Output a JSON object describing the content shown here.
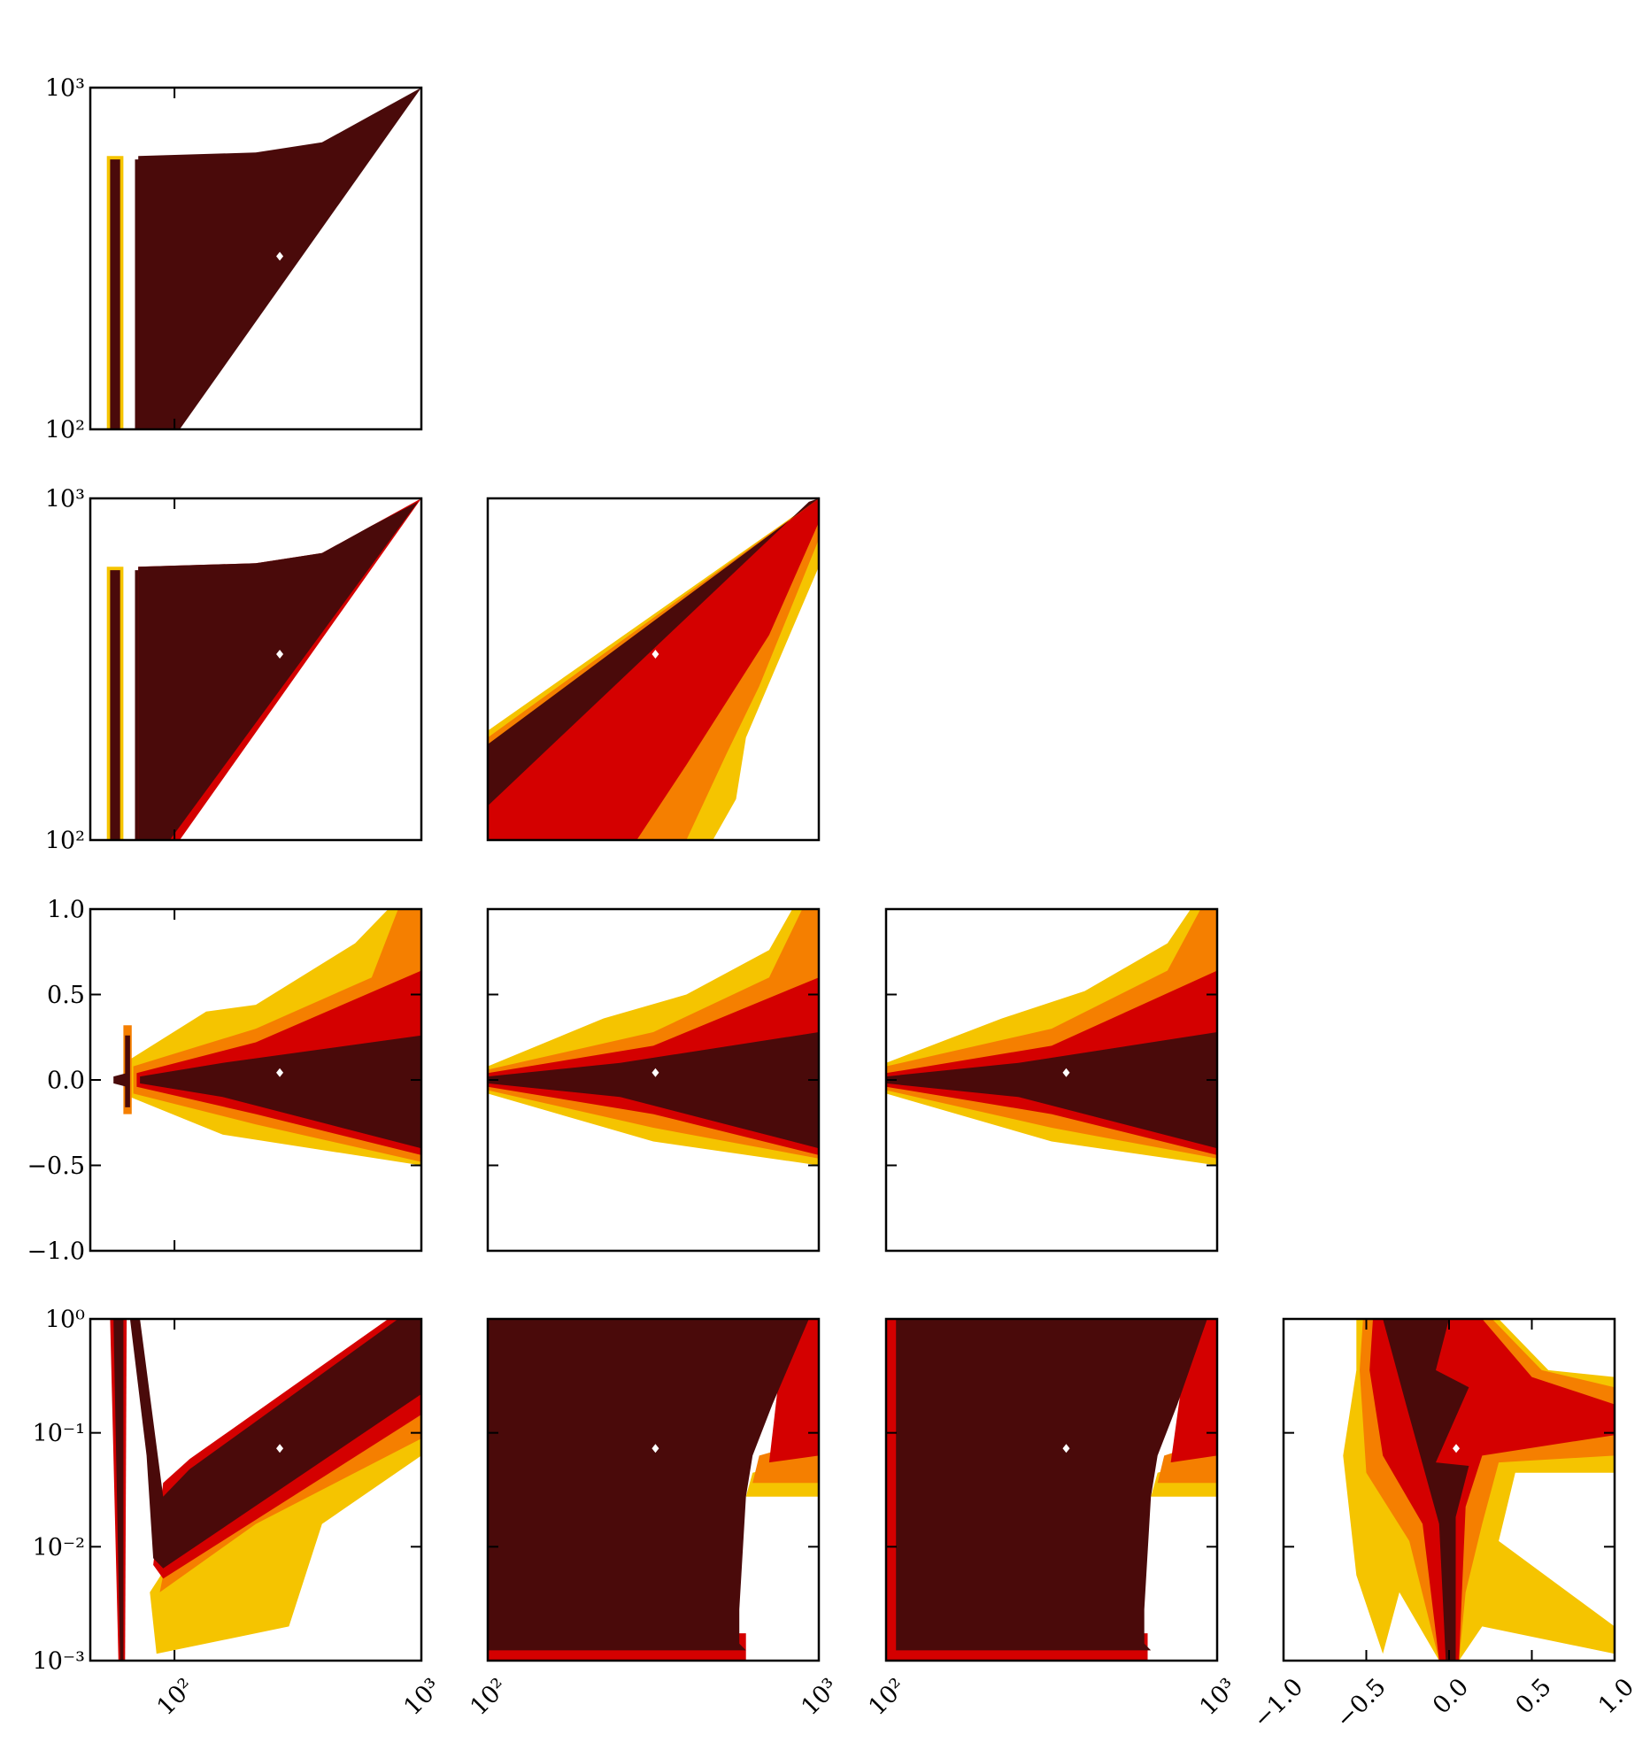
{
  "chart_data": {
    "type": "corner",
    "colors": [
      "#f5c400",
      "#f57f00",
      "#d40000",
      "#4a0a0a"
    ],
    "truth_color": "#ffffff",
    "truth": [
      267,
      321,
      350,
      0.043,
      0.073
    ],
    "columns": [
      {
        "xscale": "log",
        "xlim": [
          45.6,
          1000
        ],
        "xticks": [
          {
            "value": 100,
            "label": "10²"
          },
          {
            "value": 1000,
            "label": "10³"
          }
        ]
      },
      {
        "xscale": "log",
        "xlim": [
          100,
          1000
        ],
        "xticks": [
          {
            "value": 100,
            "label": "10²"
          },
          {
            "value": 1000,
            "label": "10³"
          }
        ]
      },
      {
        "xscale": "log",
        "xlim": [
          100,
          1000
        ],
        "xticks": [
          {
            "value": 100,
            "label": "10²"
          },
          {
            "value": 1000,
            "label": "10³"
          }
        ]
      },
      {
        "xscale": "linear",
        "xlim": [
          -1,
          1
        ],
        "xticks": [
          {
            "value": -1,
            "label": "−1.0"
          },
          {
            "value": -0.5,
            "label": "−0.5"
          },
          {
            "value": 0,
            "label": "0.0"
          },
          0.5,
          {
            "value": 1,
            "label": "1.0"
          }
        ]
      }
    ],
    "rows": [
      {
        "yscale": "log",
        "ylim": [
          100,
          1000
        ],
        "yticks": [
          {
            "value": 100,
            "label": "10²"
          },
          {
            "value": 1000,
            "label": "10³"
          }
        ]
      },
      {
        "yscale": "log",
        "ylim": [
          100,
          1000
        ],
        "yticks": [
          {
            "value": 100,
            "label": "10²"
          },
          {
            "value": 1000,
            "label": "10³"
          }
        ]
      },
      {
        "yscale": "linear",
        "ylim": [
          -1,
          1
        ],
        "yticks": [
          {
            "value": -1,
            "label": "−1.0"
          },
          {
            "value": -0.5,
            "label": "−0.5"
          },
          {
            "value": 0,
            "label": "0.0"
          },
          0.5,
          {
            "value": 1,
            "label": "1.0"
          }
        ]
      },
      {
        "yscale": "log",
        "ylim": [
          0.001,
          1
        ],
        "yticks": [
          {
            "value": 0.001,
            "label": "10⁻³"
          },
          {
            "value": 0.01,
            "label": "10⁻²"
          },
          {
            "value": 0.1,
            "label": "10⁻¹"
          },
          {
            "value": 1,
            "label": "10⁰"
          }
        ]
      }
    ]
  }
}
